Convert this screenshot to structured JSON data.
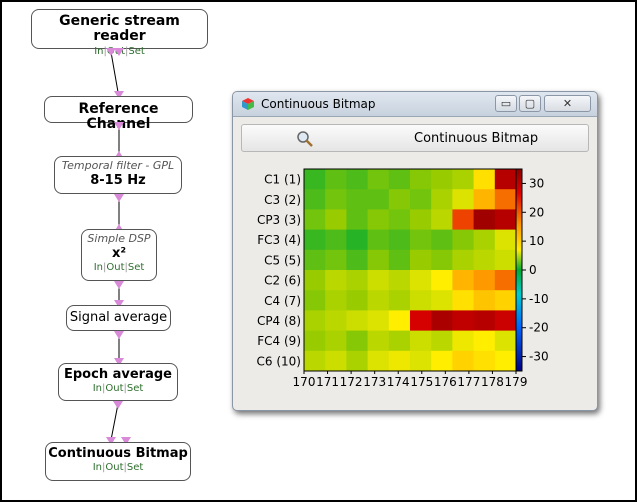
{
  "pipeline": {
    "boxes": [
      {
        "id": "stream-reader",
        "title": "Generic stream reader",
        "io": [
          "In",
          "Out",
          "Set"
        ]
      },
      {
        "id": "reference-channel",
        "title": "Reference Channel"
      },
      {
        "id": "temporal-filter",
        "subtitle": "Temporal filter - GPL",
        "value": "8-15 Hz"
      },
      {
        "id": "simple-dsp",
        "subtitle": "Simple DSP",
        "value": "x²",
        "io": [
          "In",
          "Out",
          "Set"
        ]
      },
      {
        "id": "signal-average",
        "title": "Signal average"
      },
      {
        "id": "epoch-average",
        "title": "Epoch average",
        "io": [
          "In",
          "Out",
          "Set"
        ]
      },
      {
        "id": "continuous-bitmap",
        "title": "Continuous Bitmap",
        "io": [
          "In",
          "Out",
          "Set"
        ]
      }
    ]
  },
  "window": {
    "title": "Continuous Bitmap",
    "buttons": {
      "minimize": "▭",
      "maximize": "▢",
      "close": "✕"
    },
    "toolbar_label": "Continuous Bitmap"
  },
  "chart_data": {
    "type": "heatmap",
    "title": "",
    "xlabel": "",
    "ylabel": "",
    "rows": [
      "C1 (1)",
      "C3 (2)",
      "CP3 (3)",
      "FC3 (4)",
      "C5 (5)",
      "C2 (6)",
      "C4 (7)",
      "CP4 (8)",
      "FC4 (9)",
      "C6 (10)"
    ],
    "x_ticks": [
      "170",
      "171",
      "172",
      "173",
      "174",
      "175",
      "176",
      "177",
      "178",
      "179"
    ],
    "x_range": [
      170,
      179
    ],
    "values": [
      [
        3,
        5,
        4,
        6,
        5,
        7,
        8,
        9,
        15,
        31
      ],
      [
        4,
        6,
        5,
        5,
        7,
        6,
        9,
        12,
        18,
        22
      ],
      [
        6,
        8,
        5,
        7,
        6,
        8,
        10,
        24,
        33,
        31
      ],
      [
        3,
        4,
        2,
        5,
        4,
        6,
        5,
        7,
        9,
        12
      ],
      [
        5,
        6,
        4,
        7,
        5,
        8,
        7,
        9,
        10,
        11
      ],
      [
        8,
        10,
        9,
        11,
        10,
        12,
        14,
        18,
        20,
        22
      ],
      [
        7,
        9,
        8,
        10,
        9,
        11,
        12,
        15,
        17,
        16
      ],
      [
        9,
        10,
        11,
        12,
        14,
        28,
        32,
        30,
        31,
        29
      ],
      [
        8,
        9,
        7,
        10,
        9,
        11,
        10,
        13,
        14,
        12
      ],
      [
        10,
        11,
        9,
        12,
        13,
        12,
        14,
        16,
        15,
        14
      ]
    ],
    "colorbar": {
      "ticks": [
        "30",
        "20",
        "10",
        "0",
        "-10",
        "-20",
        "-30"
      ],
      "range": [
        -35,
        35
      ]
    },
    "colors": {
      "high": "#c40000",
      "mid": "#ffee00",
      "zero": "#00aa33",
      "low": "#000080"
    }
  }
}
